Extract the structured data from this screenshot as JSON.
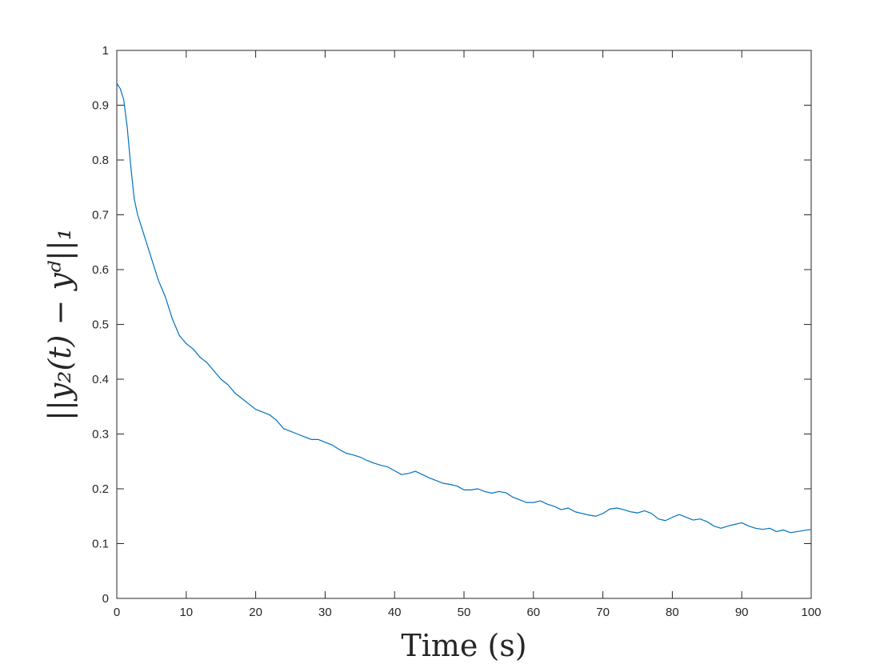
{
  "chart_data": {
    "type": "line",
    "title": "",
    "xlabel": "Time (s)",
    "ylabel": "||y₂(t) − yᵈ||₁",
    "xlim": [
      0,
      100
    ],
    "ylim": [
      0,
      1
    ],
    "xticks": [
      0,
      10,
      20,
      30,
      40,
      50,
      60,
      70,
      80,
      90,
      100
    ],
    "xtick_labels": [
      "0",
      "10",
      "20",
      "30",
      "40",
      "50",
      "60",
      "70",
      "80",
      "90",
      "100"
    ],
    "yticks": [
      0,
      0.1,
      0.2,
      0.3,
      0.4,
      0.5,
      0.6,
      0.7,
      0.8,
      0.9,
      1
    ],
    "ytick_labels": [
      "0",
      "0.1",
      "0.2",
      "0.3",
      "0.4",
      "0.5",
      "0.6",
      "0.7",
      "0.8",
      "0.9",
      "1"
    ],
    "grid": false,
    "box": true,
    "series": [
      {
        "color": "#0072BD",
        "x": [
          0,
          0.5,
          1,
          1.5,
          2,
          2.5,
          3,
          3.5,
          4,
          5,
          6,
          7,
          8,
          9,
          10,
          11,
          12,
          13,
          14,
          15,
          16,
          17,
          18,
          19,
          20,
          21,
          22,
          23,
          24,
          25,
          26,
          27,
          28,
          29,
          30,
          31,
          32,
          33,
          34,
          35,
          36,
          37,
          38,
          39,
          40,
          41,
          42,
          43,
          44,
          45,
          46,
          47,
          48,
          49,
          50,
          51,
          52,
          53,
          54,
          55,
          56,
          57,
          58,
          59,
          60,
          61,
          62,
          63,
          64,
          65,
          66,
          67,
          68,
          69,
          70,
          71,
          72,
          73,
          74,
          75,
          76,
          77,
          78,
          79,
          80,
          81,
          82,
          83,
          84,
          85,
          86,
          87,
          88,
          89,
          90,
          91,
          92,
          93,
          94,
          95,
          96,
          97,
          98,
          99,
          100
        ],
        "y": [
          0.94,
          0.93,
          0.91,
          0.86,
          0.79,
          0.73,
          0.7,
          0.68,
          0.66,
          0.62,
          0.58,
          0.55,
          0.51,
          0.48,
          0.465,
          0.455,
          0.44,
          0.43,
          0.415,
          0.4,
          0.39,
          0.375,
          0.365,
          0.355,
          0.345,
          0.34,
          0.335,
          0.325,
          0.31,
          0.305,
          0.3,
          0.295,
          0.29,
          0.29,
          0.285,
          0.28,
          0.272,
          0.265,
          0.262,
          0.258,
          0.252,
          0.247,
          0.243,
          0.24,
          0.233,
          0.226,
          0.228,
          0.232,
          0.226,
          0.22,
          0.215,
          0.21,
          0.208,
          0.205,
          0.198,
          0.198,
          0.2,
          0.195,
          0.192,
          0.195,
          0.193,
          0.185,
          0.18,
          0.175,
          0.175,
          0.178,
          0.172,
          0.168,
          0.162,
          0.165,
          0.158,
          0.155,
          0.152,
          0.15,
          0.155,
          0.163,
          0.165,
          0.162,
          0.158,
          0.156,
          0.16,
          0.155,
          0.145,
          0.142,
          0.148,
          0.153,
          0.148,
          0.143,
          0.145,
          0.14,
          0.132,
          0.128,
          0.132,
          0.135,
          0.138,
          0.132,
          0.128,
          0.126,
          0.128,
          0.122,
          0.125,
          0.12,
          0.122,
          0.124,
          0.126
        ]
      }
    ]
  }
}
